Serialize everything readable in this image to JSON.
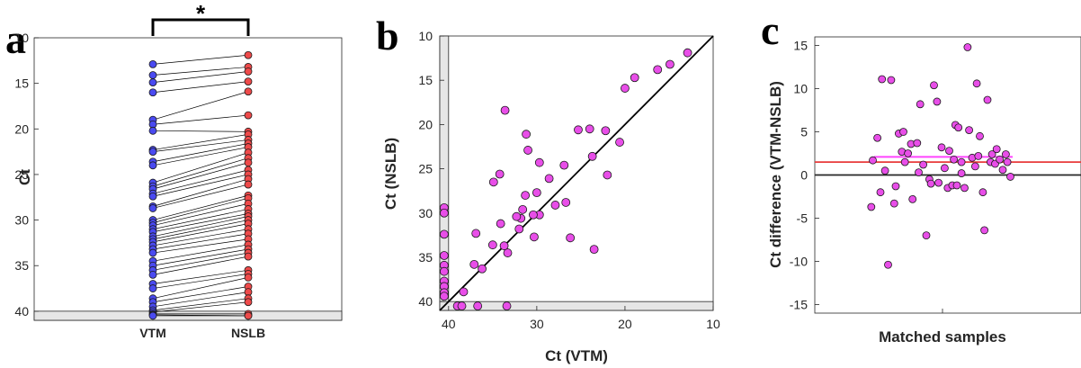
{
  "chart_data": [
    {
      "panel": "a",
      "type": "scatter",
      "title": "",
      "xlabel": "",
      "ylabel": "Ct",
      "categories": [
        "VTM",
        "NSLB"
      ],
      "yticks": [
        "10",
        "15",
        "20",
        "25",
        "30",
        "35",
        "40"
      ],
      "ylim": [
        10,
        41
      ],
      "y_reversed": true,
      "significance": "*",
      "series": [
        {
          "category": "VTM",
          "color": "#4a4af0",
          "values": [
            12.9,
            14.1,
            14.9,
            16.0,
            19.0,
            19.5,
            20.2,
            22.3,
            22.5,
            23.6,
            24.0,
            25.9,
            26.3,
            26.6,
            27.1,
            27.4,
            28.5,
            28.7,
            30.0,
            30.3,
            30.6,
            31.0,
            31.3,
            31.8,
            32.1,
            32.4,
            32.8,
            33.2,
            33.6,
            34.5,
            35.0,
            35.5,
            36.0,
            37.0,
            37.5,
            38.6,
            39.0,
            39.5,
            39.9,
            40.1,
            40.3,
            40.4,
            40.5
          ]
        },
        {
          "category": "NSLB",
          "color": "#ee4a4a",
          "values": [
            11.9,
            13.2,
            13.7,
            14.8,
            15.9,
            18.5,
            20.3,
            20.6,
            21.2,
            21.6,
            22.0,
            22.6,
            23.2,
            23.7,
            24.5,
            25.0,
            25.5,
            26.1,
            27.3,
            27.6,
            28.2,
            28.8,
            29.3,
            29.6,
            30.0,
            30.4,
            31.0,
            31.5,
            32.1,
            32.7,
            33.2,
            33.6,
            34.0,
            35.5,
            35.9,
            36.3,
            37.3,
            37.9,
            38.6,
            39.0,
            40.3,
            40.5,
            40.5
          ]
        }
      ]
    },
    {
      "panel": "b",
      "type": "scatter",
      "title": "",
      "xlabel": "Ct (VTM)",
      "ylabel": "Ct (NSLB)",
      "xticks": [
        "40",
        "30",
        "20",
        "10"
      ],
      "yticks": [
        "10",
        "15",
        "20",
        "25",
        "30",
        "35",
        "40"
      ],
      "xlim": [
        41,
        10
      ],
      "ylim": [
        10,
        41
      ],
      "x_reversed": true,
      "y_reversed": true,
      "point_color": "#e84ee8",
      "points": [
        [
          12.9,
          11.9
        ],
        [
          14.9,
          13.2
        ],
        [
          16.3,
          13.8
        ],
        [
          18.9,
          14.7
        ],
        [
          20.0,
          15.9
        ],
        [
          20.6,
          22.0
        ],
        [
          22.2,
          20.7
        ],
        [
          22.0,
          25.7
        ],
        [
          23.7,
          23.6
        ],
        [
          24.0,
          20.5
        ],
        [
          23.5,
          34.1
        ],
        [
          25.3,
          20.6
        ],
        [
          26.2,
          32.8
        ],
        [
          26.7,
          28.8
        ],
        [
          26.9,
          24.6
        ],
        [
          27.9,
          29.1
        ],
        [
          28.6,
          26.1
        ],
        [
          29.7,
          30.2
        ],
        [
          29.7,
          24.3
        ],
        [
          30.3,
          32.7
        ],
        [
          30.0,
          27.7
        ],
        [
          30.4,
          30.2
        ],
        [
          31.2,
          21.1
        ],
        [
          31.0,
          22.9
        ],
        [
          31.3,
          28.0
        ],
        [
          31.6,
          29.6
        ],
        [
          31.8,
          30.6
        ],
        [
          32.0,
          31.8
        ],
        [
          32.3,
          30.4
        ],
        [
          33.3,
          34.5
        ],
        [
          33.7,
          33.7
        ],
        [
          33.6,
          18.4
        ],
        [
          34.1,
          31.2
        ],
        [
          34.2,
          25.6
        ],
        [
          34.9,
          26.5
        ],
        [
          35.0,
          33.6
        ],
        [
          36.2,
          36.3
        ],
        [
          36.9,
          32.3
        ],
        [
          37.1,
          35.8
        ],
        [
          38.3,
          38.9
        ],
        [
          36.7,
          40.5
        ],
        [
          39.0,
          40.5
        ],
        [
          38.5,
          40.5
        ],
        [
          33.4,
          40.5
        ],
        [
          40.5,
          29.4
        ],
        [
          40.5,
          30.0
        ],
        [
          40.5,
          32.4
        ],
        [
          40.5,
          34.8
        ],
        [
          40.5,
          35.9
        ],
        [
          40.5,
          36.6
        ],
        [
          40.5,
          37.7
        ],
        [
          40.5,
          38.3
        ],
        [
          40.5,
          39.0
        ],
        [
          40.5,
          39.4
        ]
      ]
    },
    {
      "panel": "c",
      "type": "scatter",
      "title": "",
      "xlabel": "Matched samples",
      "ylabel": "Ct difference (VTM-NSLB)",
      "yticks": [
        "15",
        "10",
        "5",
        "0",
        "-5",
        "-10",
        "-15"
      ],
      "ylim": [
        -16,
        16
      ],
      "point_color": "#e84ee8",
      "mean_difference": 2.1,
      "mean_line_color": "#ff44ff",
      "reference_line_value": 1.5,
      "reference_line_color": "#e83a3a",
      "zero_line_color": "#262626",
      "points": [
        [
          0.05,
          1.7
        ],
        [
          0.08,
          4.3
        ],
        [
          0.11,
          11.1
        ],
        [
          0.13,
          0.5
        ],
        [
          0.1,
          -2.0
        ],
        [
          0.04,
          -3.7
        ],
        [
          0.17,
          11.0
        ],
        [
          0.19,
          -3.3
        ],
        [
          0.2,
          -1.3
        ],
        [
          0.22,
          4.8
        ],
        [
          0.24,
          2.7
        ],
        [
          0.25,
          5.0
        ],
        [
          0.28,
          2.5
        ],
        [
          0.3,
          3.6
        ],
        [
          0.31,
          -2.8
        ],
        [
          0.34,
          3.7
        ],
        [
          0.36,
          8.2
        ],
        [
          0.38,
          1.2
        ],
        [
          0.4,
          -7.0
        ],
        [
          0.42,
          -0.5
        ],
        [
          0.43,
          -1.0
        ],
        [
          0.45,
          10.4
        ],
        [
          0.47,
          8.5
        ],
        [
          0.5,
          3.2
        ],
        [
          0.52,
          0.8
        ],
        [
          0.54,
          -1.5
        ],
        [
          0.55,
          2.8
        ],
        [
          0.57,
          -1.2
        ],
        [
          0.59,
          5.8
        ],
        [
          0.61,
          5.5
        ],
        [
          0.63,
          1.5
        ],
        [
          0.65,
          -1.5
        ],
        [
          0.67,
          14.8
        ],
        [
          0.68,
          5.2
        ],
        [
          0.7,
          2.0
        ],
        [
          0.72,
          1.0
        ],
        [
          0.73,
          10.6
        ],
        [
          0.75,
          4.5
        ],
        [
          0.77,
          -2.0
        ],
        [
          0.78,
          -6.4
        ],
        [
          0.8,
          8.7
        ],
        [
          0.82,
          1.5
        ],
        [
          0.83,
          2.4
        ],
        [
          0.85,
          1.3
        ],
        [
          0.86,
          3.0
        ],
        [
          0.88,
          1.8
        ],
        [
          0.9,
          0.6
        ],
        [
          0.92,
          2.4
        ],
        [
          0.93,
          1.5
        ],
        [
          0.95,
          -0.2
        ],
        [
          0.63,
          0.2
        ],
        [
          0.58,
          1.8
        ],
        [
          0.35,
          0.3
        ],
        [
          0.48,
          -0.9
        ],
        [
          0.26,
          1.5
        ],
        [
          0.6,
          -1.2
        ],
        [
          0.74,
          2.2
        ],
        [
          0.15,
          -10.4
        ]
      ]
    }
  ]
}
